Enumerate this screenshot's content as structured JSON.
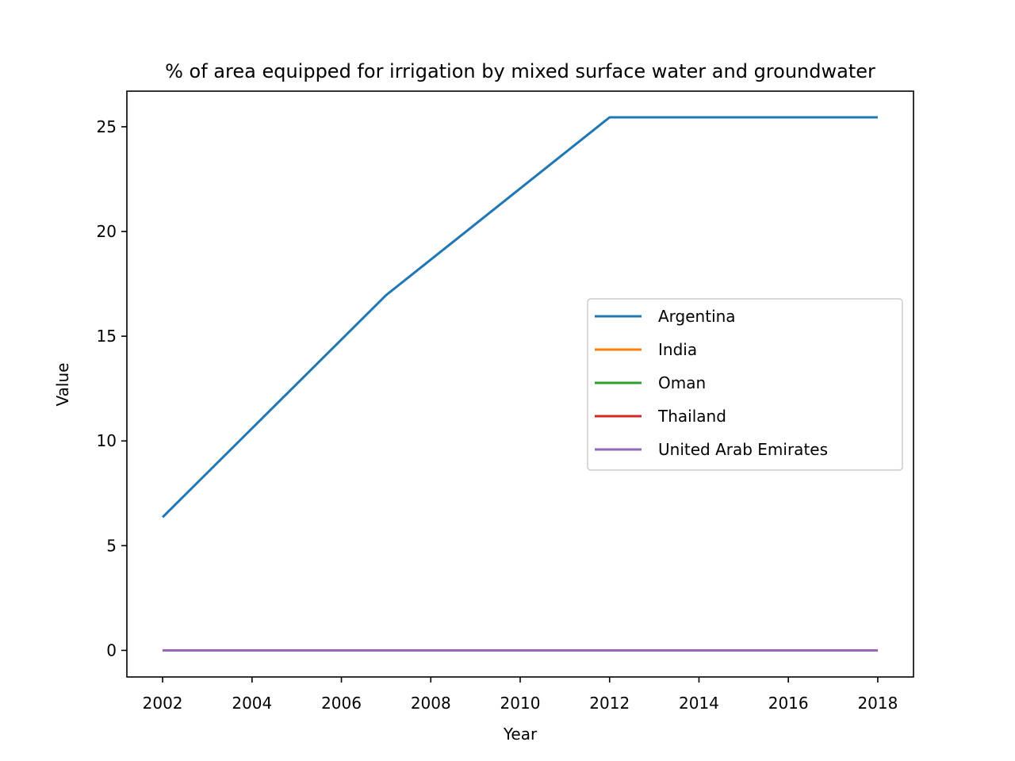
{
  "chart_data": {
    "type": "line",
    "title": "% of area equipped for irrigation by mixed surface water and groundwater",
    "xlabel": "Year",
    "ylabel": "Value",
    "xlim": [
      2001.2,
      2018.8
    ],
    "ylim": [
      -1.27,
      26.7
    ],
    "xticks": [
      2002,
      2004,
      2006,
      2008,
      2010,
      2012,
      2014,
      2016,
      2018
    ],
    "yticks": [
      0,
      5,
      10,
      15,
      20,
      25
    ],
    "x": [
      2002,
      2007,
      2012,
      2017,
      2018
    ],
    "series": [
      {
        "name": "Argentina",
        "color": "#1f77b4",
        "values": [
          6.36,
          16.96,
          25.45,
          25.45,
          25.45
        ]
      },
      {
        "name": "India",
        "color": "#ff7f0e",
        "values": [
          0,
          0,
          0,
          0,
          0
        ]
      },
      {
        "name": "Oman",
        "color": "#2ca02c",
        "values": [
          0,
          0,
          0,
          0,
          0
        ]
      },
      {
        "name": "Thailand",
        "color": "#d62728",
        "values": [
          0,
          0,
          0,
          0,
          0
        ]
      },
      {
        "name": "United Arab Emirates",
        "color": "#9467bd",
        "values": [
          0,
          0,
          0,
          0,
          0
        ]
      }
    ],
    "grid": false,
    "legend_position": "center-right"
  }
}
